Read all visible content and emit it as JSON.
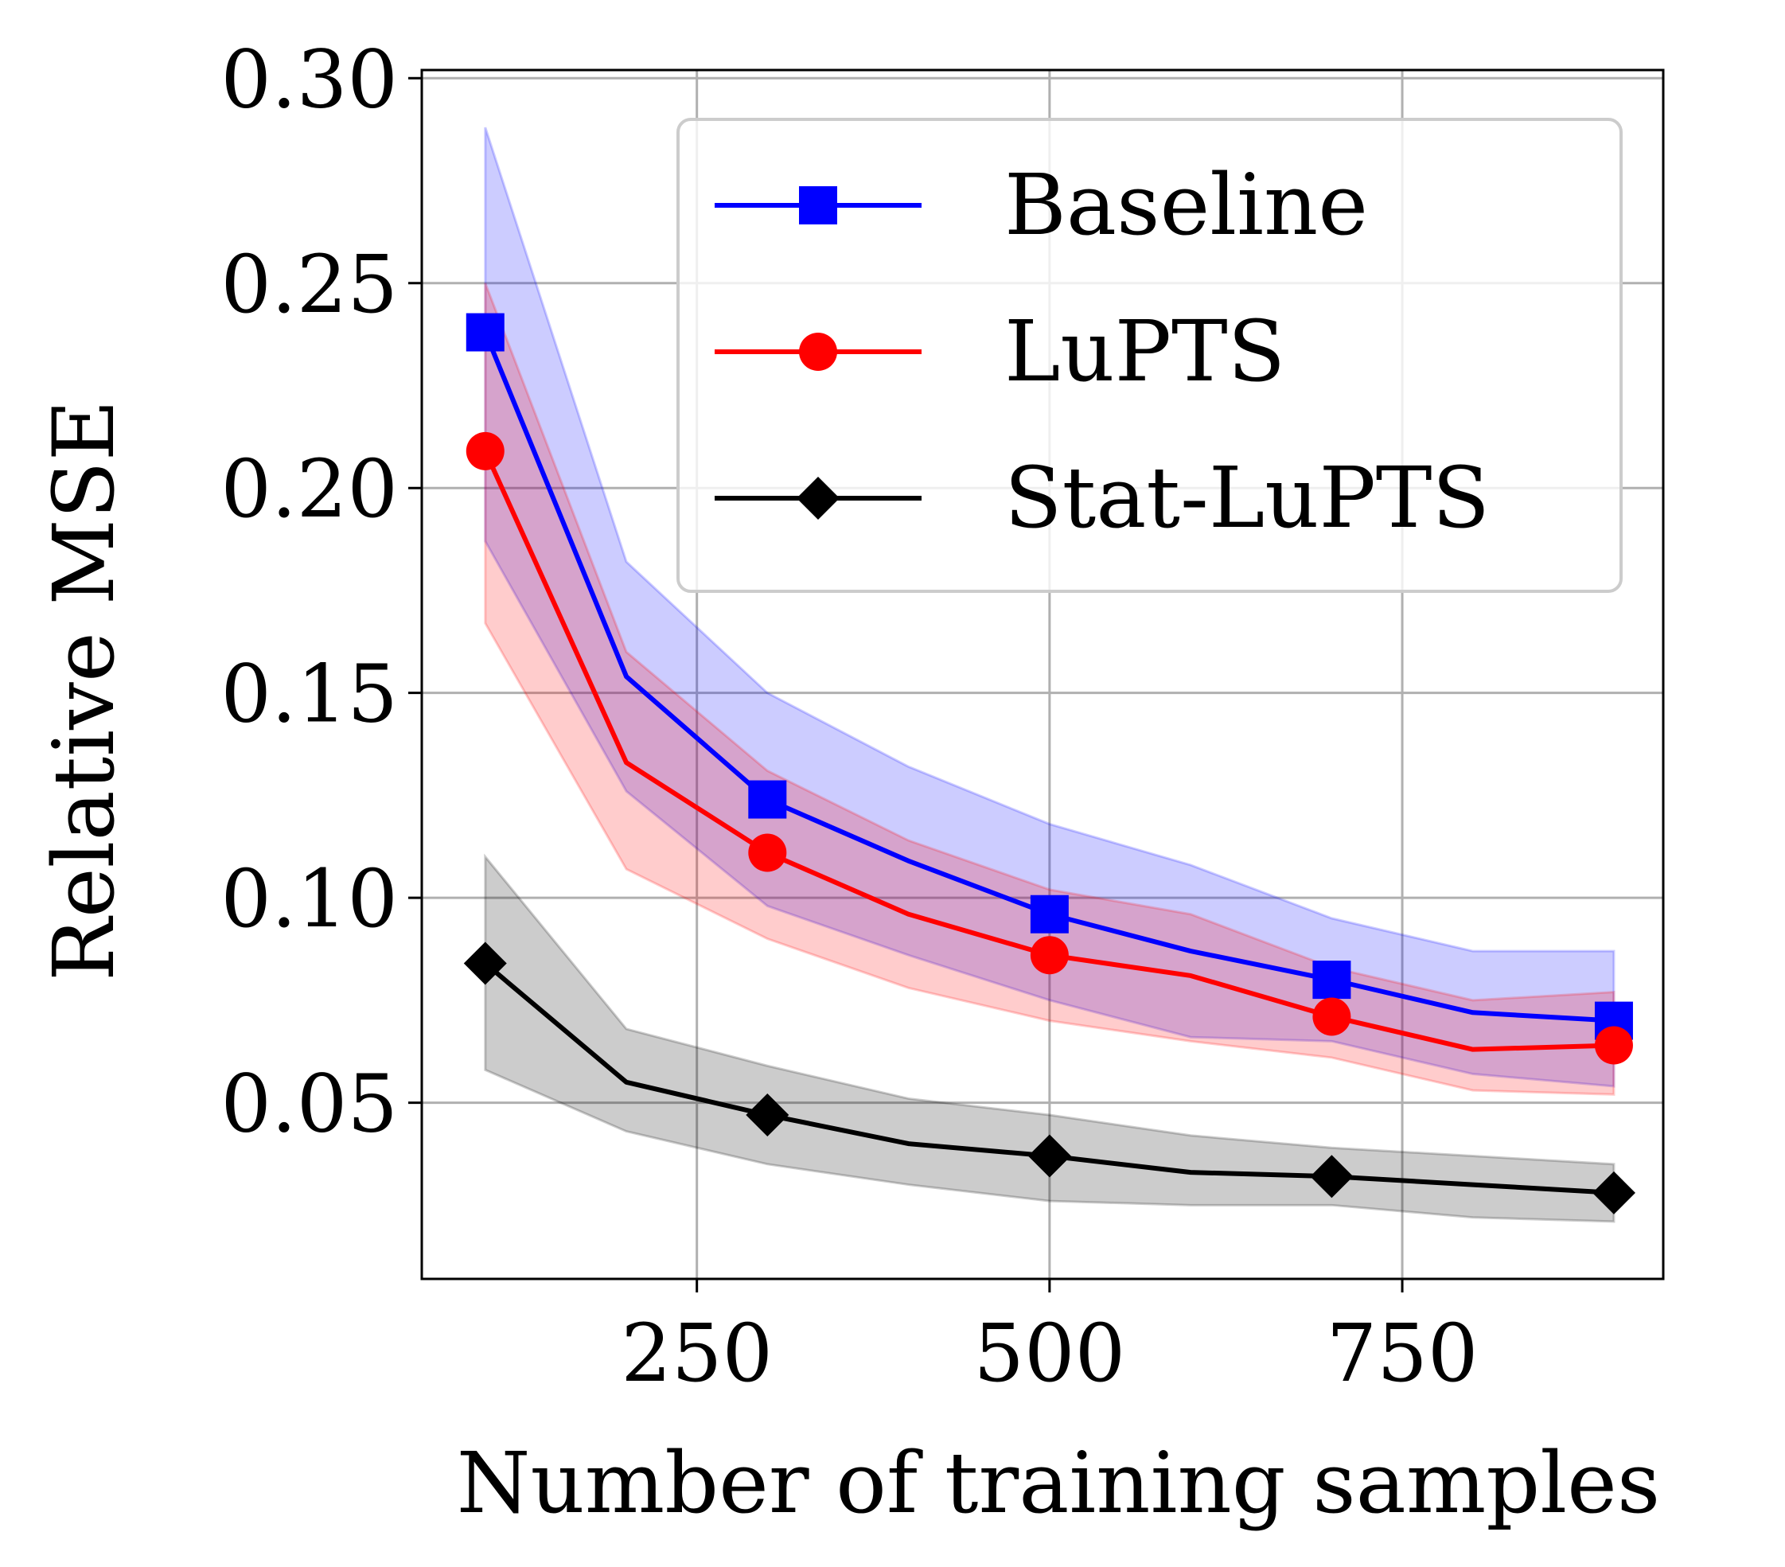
{
  "chart_data": {
    "type": "line",
    "title": "",
    "xlabel": "Number of training samples",
    "ylabel": "Relative MSE",
    "xlim": [
      55,
      935
    ],
    "ylim": [
      0.007,
      0.302
    ],
    "xticks": [
      250,
      500,
      750
    ],
    "xtick_labels": [
      "250",
      "500",
      "750"
    ],
    "yticks": [
      0.05,
      0.1,
      0.15,
      0.2,
      0.25,
      0.3
    ],
    "ytick_labels": [
      "0.05",
      "0.10",
      "0.15",
      "0.20",
      "0.25",
      "0.30"
    ],
    "grid": true,
    "legend_position": "top-right",
    "x": [
      100,
      200,
      300,
      400,
      500,
      600,
      700,
      800,
      900
    ],
    "series": [
      {
        "name": "Baseline",
        "color": "#0000ff",
        "marker": "square",
        "marker_x": [
          100,
          300,
          500,
          700,
          900
        ],
        "values": [
          0.238,
          0.154,
          0.124,
          0.109,
          0.096,
          0.087,
          0.08,
          0.072,
          0.07
        ],
        "band_upper": [
          0.288,
          0.182,
          0.15,
          0.132,
          0.118,
          0.108,
          0.095,
          0.087,
          0.087
        ],
        "band_lower": [
          0.187,
          0.126,
          0.098,
          0.086,
          0.075,
          0.066,
          0.065,
          0.057,
          0.054
        ]
      },
      {
        "name": "LuPTS",
        "color": "#ff0000",
        "marker": "circle",
        "marker_x": [
          100,
          300,
          500,
          700,
          900
        ],
        "values": [
          0.209,
          0.133,
          0.111,
          0.096,
          0.086,
          0.081,
          0.071,
          0.063,
          0.064
        ],
        "band_upper": [
          0.25,
          0.16,
          0.131,
          0.114,
          0.102,
          0.096,
          0.083,
          0.075,
          0.077
        ],
        "band_lower": [
          0.167,
          0.107,
          0.09,
          0.078,
          0.07,
          0.065,
          0.061,
          0.053,
          0.052
        ]
      },
      {
        "name": "Stat-LuPTS",
        "color": "#000000",
        "marker": "diamond",
        "marker_x": [
          100,
          300,
          500,
          700,
          900
        ],
        "values": [
          0.084,
          0.055,
          0.047,
          0.04,
          0.037,
          0.033,
          0.032,
          0.03,
          0.028
        ],
        "band_upper": [
          0.11,
          0.068,
          0.059,
          0.051,
          0.047,
          0.042,
          0.039,
          0.037,
          0.035
        ],
        "band_lower": [
          0.058,
          0.043,
          0.035,
          0.03,
          0.026,
          0.025,
          0.025,
          0.022,
          0.021
        ]
      }
    ]
  }
}
